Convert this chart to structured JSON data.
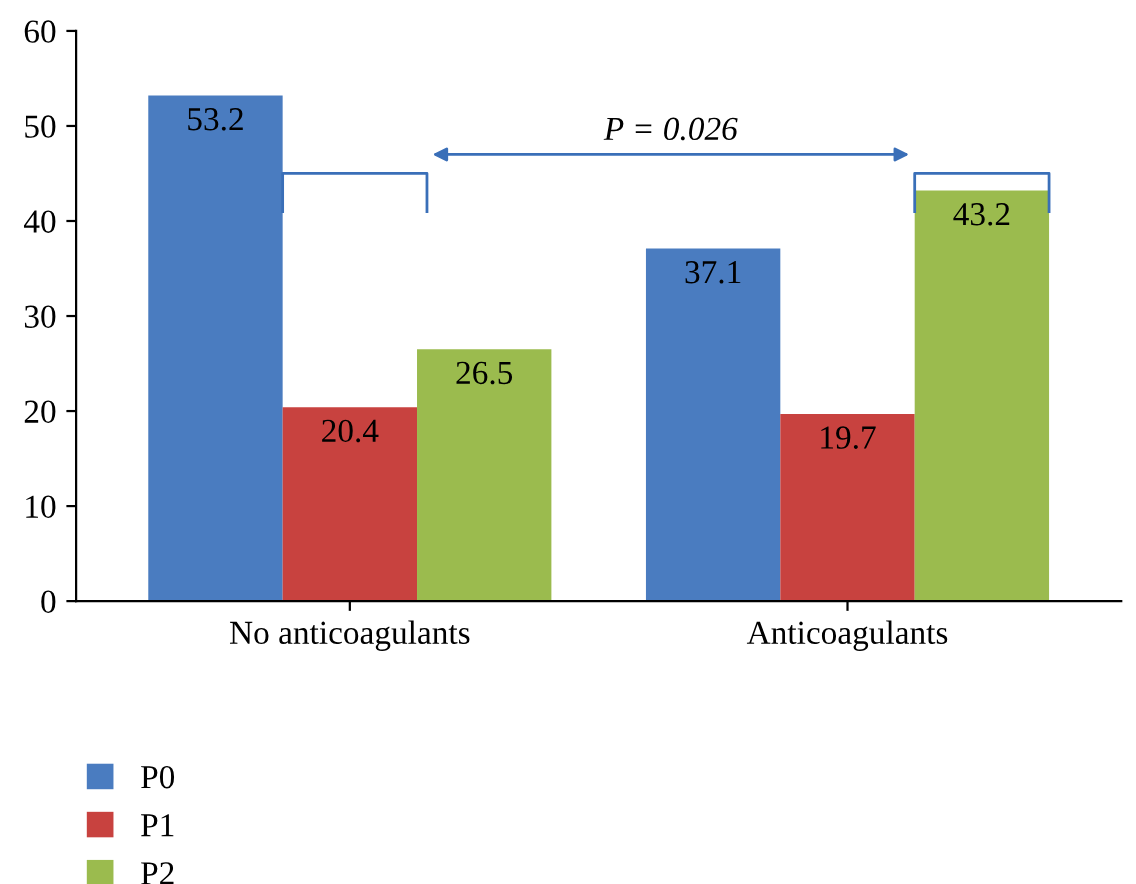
{
  "chart_data": {
    "type": "bar",
    "categories": [
      "No anticoagulants",
      "Anticoagulants"
    ],
    "series": [
      {
        "name": "P0",
        "color": "#4a7cc0",
        "values": [
          53.2,
          37.1
        ]
      },
      {
        "name": "P1",
        "color": "#c8423f",
        "values": [
          20.4,
          19.7
        ]
      },
      {
        "name": "P2",
        "color": "#9bbb4e",
        "values": [
          26.5,
          43.2
        ]
      }
    ],
    "ylim": [
      0,
      60
    ],
    "yticks": [
      0,
      10,
      20,
      30,
      40,
      50,
      60
    ],
    "data_labels": true,
    "grid": false,
    "legend": "bottom left",
    "annotations": [
      "P = 0.026"
    ]
  }
}
